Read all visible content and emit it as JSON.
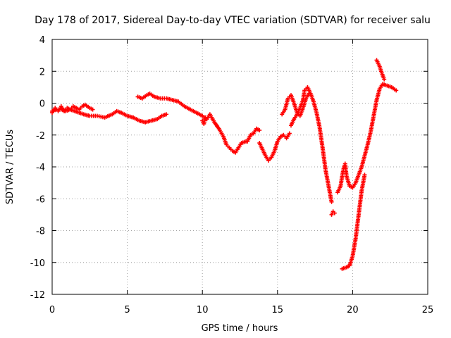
{
  "chart_data": {
    "type": "scatter",
    "title": "Day 178 of 2017, Sidereal Day-to-day VTEC variation (SDTVAR) for receiver salu",
    "xlabel": "GPS time / hours",
    "ylabel": "SDTVAR / TECUs",
    "xlim": [
      0,
      25
    ],
    "ylim": [
      -12,
      4
    ],
    "xticks": [
      0,
      5,
      10,
      15,
      20,
      25
    ],
    "yticks": [
      -12,
      -10,
      -8,
      -6,
      -4,
      -2,
      0,
      2,
      4
    ],
    "grid": true,
    "marker": "+",
    "series_color": "#ff0000",
    "segments": [
      [
        [
          0.0,
          -0.6
        ],
        [
          0.2,
          -0.3
        ],
        [
          0.4,
          -0.5
        ],
        [
          0.6,
          -0.2
        ],
        [
          0.8,
          -0.5
        ],
        [
          1.0,
          -0.3
        ],
        [
          1.2,
          -0.4
        ],
        [
          1.4,
          -0.2
        ],
        [
          1.6,
          -0.3
        ],
        [
          1.8,
          -0.4
        ],
        [
          2.0,
          -0.2
        ],
        [
          2.2,
          -0.1
        ],
        [
          2.5,
          -0.3
        ],
        [
          2.7,
          -0.4
        ]
      ],
      [
        [
          0.0,
          -0.5
        ],
        [
          0.3,
          -0.4
        ],
        [
          0.6,
          -0.4
        ],
        [
          0.9,
          -0.5
        ],
        [
          1.2,
          -0.4
        ],
        [
          1.5,
          -0.5
        ],
        [
          1.8,
          -0.6
        ],
        [
          2.1,
          -0.7
        ],
        [
          2.5,
          -0.8
        ],
        [
          3.0,
          -0.8
        ],
        [
          3.5,
          -0.9
        ],
        [
          4.0,
          -0.7
        ],
        [
          4.3,
          -0.5
        ],
        [
          4.6,
          -0.6
        ],
        [
          5.0,
          -0.8
        ],
        [
          5.4,
          -0.9
        ],
        [
          5.8,
          -1.1
        ],
        [
          6.2,
          -1.2
        ],
        [
          6.6,
          -1.1
        ],
        [
          7.0,
          -1.0
        ],
        [
          7.3,
          -0.8
        ],
        [
          7.6,
          -0.7
        ]
      ],
      [
        [
          5.7,
          0.4
        ],
        [
          6.0,
          0.3
        ],
        [
          6.3,
          0.5
        ],
        [
          6.5,
          0.6
        ],
        [
          6.8,
          0.4
        ],
        [
          7.2,
          0.3
        ],
        [
          7.6,
          0.3
        ],
        [
          8.0,
          0.2
        ],
        [
          8.4,
          0.1
        ],
        [
          8.8,
          -0.2
        ],
        [
          9.2,
          -0.4
        ],
        [
          9.6,
          -0.6
        ],
        [
          10.0,
          -0.8
        ],
        [
          10.3,
          -1.0
        ],
        [
          10.5,
          -0.7
        ],
        [
          10.8,
          -1.2
        ],
        [
          11.1,
          -1.6
        ],
        [
          11.4,
          -2.1
        ],
        [
          11.6,
          -2.6
        ],
        [
          11.8,
          -2.8
        ],
        [
          12.0,
          -3.0
        ],
        [
          12.2,
          -3.1
        ],
        [
          12.4,
          -2.8
        ],
        [
          12.6,
          -2.5
        ],
        [
          12.9,
          -2.4
        ]
      ],
      [
        [
          10.0,
          -1.1
        ],
        [
          10.1,
          -1.3
        ],
        [
          10.2,
          -0.9
        ]
      ],
      [
        [
          13.0,
          -2.4
        ],
        [
          13.2,
          -2.0
        ],
        [
          13.4,
          -1.9
        ],
        [
          13.6,
          -1.6
        ],
        [
          13.8,
          -1.7
        ]
      ],
      [
        [
          13.8,
          -2.5
        ],
        [
          14.0,
          -2.9
        ],
        [
          14.2,
          -3.3
        ],
        [
          14.4,
          -3.6
        ],
        [
          14.6,
          -3.4
        ],
        [
          14.8,
          -3.0
        ],
        [
          15.0,
          -2.4
        ],
        [
          15.2,
          -2.1
        ],
        [
          15.4,
          -2.0
        ],
        [
          15.6,
          -2.2
        ],
        [
          15.8,
          -1.9
        ]
      ],
      [
        [
          15.3,
          -0.7
        ],
        [
          15.5,
          -0.4
        ],
        [
          15.7,
          0.3
        ],
        [
          15.9,
          0.5
        ],
        [
          16.1,
          0.0
        ],
        [
          16.3,
          -0.6
        ],
        [
          16.5,
          -0.8
        ],
        [
          16.7,
          -0.3
        ],
        [
          16.9,
          0.3
        ],
        [
          17.1,
          0.6
        ]
      ],
      [
        [
          15.9,
          -1.4
        ],
        [
          16.1,
          -1.0
        ],
        [
          16.3,
          -0.7
        ],
        [
          16.5,
          -0.3
        ],
        [
          16.7,
          0.2
        ],
        [
          16.8,
          0.8
        ],
        [
          17.0,
          1.0
        ],
        [
          17.2,
          0.6
        ],
        [
          17.4,
          0.1
        ],
        [
          17.6,
          -0.6
        ],
        [
          17.8,
          -1.5
        ],
        [
          18.0,
          -2.8
        ],
        [
          18.2,
          -4.2
        ],
        [
          18.4,
          -5.2
        ],
        [
          18.6,
          -6.2
        ]
      ],
      [
        [
          18.6,
          -7.0
        ],
        [
          18.7,
          -6.8
        ],
        [
          18.8,
          -6.9
        ]
      ],
      [
        [
          19.0,
          -5.6
        ],
        [
          19.2,
          -5.2
        ],
        [
          19.3,
          -4.6
        ],
        [
          19.4,
          -4.1
        ],
        [
          19.5,
          -3.8
        ],
        [
          19.6,
          -4.6
        ],
        [
          19.8,
          -5.2
        ],
        [
          20.0,
          -5.3
        ],
        [
          20.2,
          -5.0
        ],
        [
          20.4,
          -4.5
        ],
        [
          20.6,
          -4.0
        ],
        [
          20.8,
          -3.3
        ],
        [
          21.0,
          -2.6
        ],
        [
          21.2,
          -1.8
        ],
        [
          21.4,
          -0.8
        ],
        [
          21.6,
          0.2
        ],
        [
          21.8,
          0.9
        ],
        [
          22.0,
          1.2
        ],
        [
          22.3,
          1.1
        ],
        [
          22.6,
          1.0
        ],
        [
          22.9,
          0.8
        ]
      ],
      [
        [
          19.3,
          -10.4
        ],
        [
          19.6,
          -10.3
        ],
        [
          19.8,
          -10.2
        ],
        [
          20.0,
          -9.6
        ],
        [
          20.2,
          -8.5
        ],
        [
          20.4,
          -7.0
        ],
        [
          20.6,
          -5.5
        ],
        [
          20.8,
          -4.5
        ]
      ],
      [
        [
          21.6,
          2.7
        ],
        [
          21.8,
          2.3
        ],
        [
          21.9,
          2.0
        ],
        [
          22.1,
          1.5
        ]
      ]
    ]
  }
}
